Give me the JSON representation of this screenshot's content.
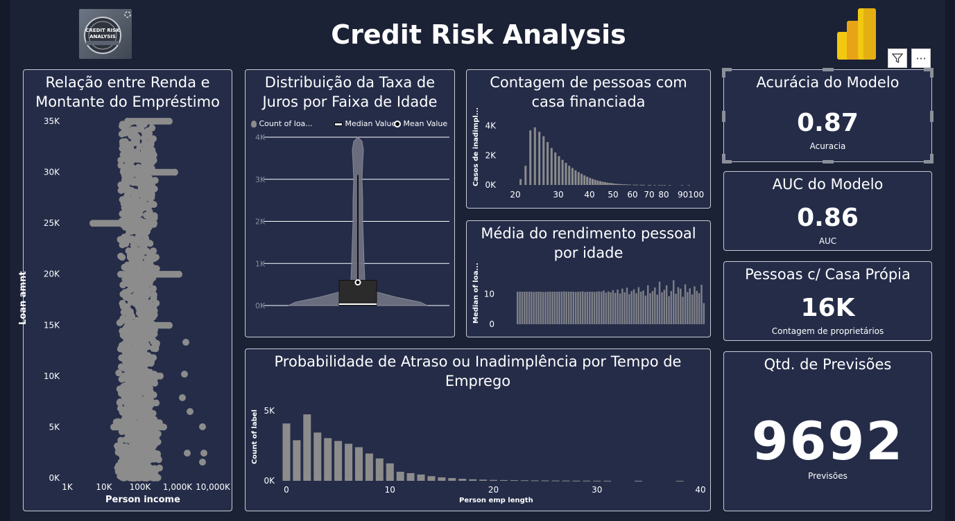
{
  "header": {
    "title": "Credit Risk Analysis"
  },
  "logo": {
    "text": "CREDIT RISK ANALYSIS"
  },
  "toolbar": {
    "filter_icon": "filter-icon",
    "more_label": "···"
  },
  "scatter": {
    "title_line1": "Relação entre Renda e",
    "title_line2": "Montante do Empréstimo",
    "ylabel": "Loan amnt",
    "xlabel": "Person income",
    "yticks": [
      "35K",
      "30K",
      "25K",
      "20K",
      "15K",
      "10K",
      "5K",
      "0K"
    ],
    "xticks": [
      "1K",
      "10K",
      "100K",
      "1,000K",
      "10,000K"
    ],
    "point_color": "#8c8c8c"
  },
  "violin": {
    "title_line1": "Distribuição da Taxa de",
    "title_line2": "Juros por Faixa de Idade",
    "legend": [
      "Count of loa...",
      "Median Value",
      "Mean Value"
    ],
    "yticks": [
      "4K",
      "3K",
      "2K",
      "1K",
      "0K"
    ],
    "chart_data": {
      "type": "violin",
      "ylim": [
        0,
        4000
      ],
      "box": {
        "q1": 0,
        "median": 0,
        "q3": 600,
        "mean": 550
      },
      "whisker_max": 3100,
      "violin_max": 4000
    }
  },
  "housing": {
    "title_line1": "Contagem de pessoas com",
    "title_line2": "casa financiada",
    "ylabel": "Casos de inadimpl...",
    "yticks": [
      "4K",
      "2K",
      "0K"
    ],
    "xticks": [
      "20",
      "30",
      "40",
      "50",
      "60",
      "70",
      "80",
      "90100"
    ],
    "chart_data": {
      "type": "bar",
      "ylim": [
        0,
        4500
      ],
      "x": [
        21,
        22,
        23,
        24,
        25,
        26,
        27,
        28,
        29,
        30,
        31,
        32,
        33,
        34,
        35,
        36,
        37,
        38,
        39,
        40,
        41,
        42,
        43,
        44,
        45,
        46,
        47,
        48,
        49,
        50,
        51,
        52,
        53,
        54,
        55,
        56,
        57,
        58,
        60,
        61,
        62,
        64,
        65,
        66,
        69,
        70,
        73,
        76,
        78,
        80,
        84,
        94,
        100
      ],
      "values": [
        400,
        1300,
        3700,
        3900,
        3600,
        3300,
        2900,
        2500,
        2200,
        1950,
        1700,
        1500,
        1300,
        1150,
        1000,
        870,
        760,
        650,
        560,
        480,
        410,
        350,
        300,
        260,
        220,
        190,
        160,
        140,
        120,
        100,
        85,
        70,
        60,
        50,
        45,
        40,
        30,
        25,
        20,
        18,
        15,
        12,
        10,
        8,
        6,
        5,
        4,
        3,
        3,
        2,
        2,
        1,
        1
      ]
    }
  },
  "income_by_age": {
    "title_line1": "Média do rendimento pessoal",
    "title_line2": "por idade",
    "ylabel": "Median of loa...",
    "yticks": [
      "10",
      "0"
    ],
    "chart_data": {
      "type": "bar",
      "ylim": [
        0,
        17
      ],
      "values": [
        10.8,
        10.8,
        10.8,
        10.8,
        10.8,
        10.8,
        10.8,
        10.7,
        10.8,
        10.8,
        10.8,
        10.7,
        10.7,
        10.8,
        10.8,
        10.8,
        10.8,
        10.8,
        10.8,
        10.8,
        10.9,
        10.8,
        10.8,
        10.8,
        10.8,
        10.7,
        10.8,
        10.8,
        10.9,
        10.7,
        10.8,
        10.8,
        10.8,
        10.7,
        10.8,
        10.9,
        10.8,
        11.2,
        10.5,
        10.9,
        10.6,
        11.3,
        10.4,
        11.5,
        10.2,
        11.8,
        10.6,
        12.1,
        10.0,
        11.0,
        11.6,
        10.3,
        12.3,
        10.8,
        11.2,
        9.5,
        12.9,
        10.3,
        11.0,
        12.2,
        9.8,
        14.1,
        10.6,
        11.4,
        12.9,
        9.3,
        11.0,
        14.6,
        10.1,
        12.3,
        11.8,
        9.1,
        13.2,
        10.7,
        11.9,
        9.9,
        12.6,
        11.1,
        10.3,
        13.1,
        7.0
      ]
    }
  },
  "employment": {
    "title_line1": "Probabilidade de Atraso ou Inadimplência por Tempo de",
    "title_line2": "Emprego",
    "ylabel": "Count of label",
    "xlabel": "Person emp length",
    "yticks": [
      "5K",
      "0K"
    ],
    "xticks": [
      "0",
      "10",
      "20",
      "30",
      "40"
    ],
    "chart_data": {
      "type": "bar",
      "xlabel": "Person emp length",
      "ylabel": "Count of label",
      "ylim": [
        0,
        5200
      ],
      "x": [
        0,
        1,
        2,
        3,
        4,
        5,
        6,
        7,
        8,
        9,
        10,
        11,
        12,
        13,
        14,
        15,
        16,
        17,
        18,
        19,
        20,
        21,
        22,
        23,
        24,
        25,
        26,
        27,
        28,
        29,
        30,
        31,
        34,
        38
      ],
      "values": [
        4100,
        2900,
        4750,
        3450,
        3050,
        2850,
        2650,
        2400,
        1950,
        1600,
        1250,
        650,
        550,
        450,
        330,
        250,
        200,
        150,
        110,
        85,
        65,
        55,
        45,
        38,
        30,
        25,
        18,
        14,
        10,
        8,
        6,
        4,
        3,
        2
      ]
    }
  },
  "kpis": [
    {
      "title": "Acurácia do Modelo",
      "value": "0.87",
      "label": "Acuracia"
    },
    {
      "title": "AUC do Modelo",
      "value": "0.86",
      "label": "AUC"
    },
    {
      "title": "Pessoas c/ Casa Própia",
      "value": "16K",
      "label": "Contagem de proprietários"
    },
    {
      "title": "Qtd. de Previsões",
      "value": "9692",
      "label": "Previsões"
    }
  ]
}
